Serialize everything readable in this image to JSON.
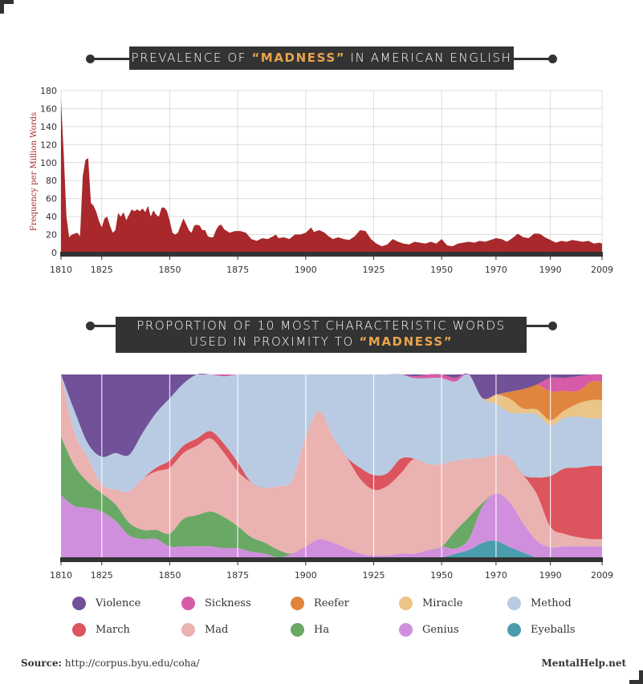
{
  "title1": {
    "prefix": "PREVALENCE OF ",
    "highlight": "“MADNESS”",
    "suffix": " IN AMERICAN ENGLISH"
  },
  "title2": {
    "line1": "PROPORTION OF 10 MOST CHARACTERISTIC WORDS",
    "prefix2": "USED IN PROXIMITY TO ",
    "highlight": "“MADNESS”"
  },
  "footer": {
    "source_label": "Source:",
    "source_url": "http://corpus.byu.edu/coha/",
    "brand": "MentalHelp.net"
  },
  "colors": {
    "frequency_fill": "#a8282b",
    "frame": "#333333",
    "accent": "#e8a44c"
  },
  "chart_data": [
    {
      "type": "area",
      "title": "PREVALENCE OF “MADNESS” IN AMERICAN ENGLISH",
      "ylabel": "Frequency per Million Words",
      "xlim": [
        1810,
        2009
      ],
      "ylim": [
        0,
        180
      ],
      "x_ticks": [
        1810,
        1825,
        1850,
        1875,
        1900,
        1925,
        1950,
        1970,
        1990,
        2009
      ],
      "y_ticks": [
        0,
        20,
        40,
        60,
        80,
        100,
        120,
        140,
        160,
        180
      ],
      "grid": true,
      "points": [
        [
          1810,
          170
        ],
        [
          1811,
          110
        ],
        [
          1812,
          40
        ],
        [
          1813,
          17
        ],
        [
          1814,
          20
        ],
        [
          1816,
          22
        ],
        [
          1817,
          18
        ],
        [
          1818,
          85
        ],
        [
          1819,
          103
        ],
        [
          1820,
          105
        ],
        [
          1821,
          55
        ],
        [
          1822,
          52
        ],
        [
          1823,
          45
        ],
        [
          1824,
          35
        ],
        [
          1825,
          28
        ],
        [
          1826,
          38
        ],
        [
          1827,
          40
        ],
        [
          1828,
          30
        ],
        [
          1829,
          22
        ],
        [
          1830,
          25
        ],
        [
          1831,
          44
        ],
        [
          1832,
          40
        ],
        [
          1833,
          45
        ],
        [
          1834,
          36
        ],
        [
          1835,
          42
        ],
        [
          1836,
          48
        ],
        [
          1837,
          46
        ],
        [
          1838,
          48
        ],
        [
          1839,
          46
        ],
        [
          1840,
          49
        ],
        [
          1841,
          45
        ],
        [
          1842,
          52
        ],
        [
          1843,
          40
        ],
        [
          1844,
          47
        ],
        [
          1845,
          42
        ],
        [
          1846,
          40
        ],
        [
          1847,
          50
        ],
        [
          1848,
          50
        ],
        [
          1849,
          46
        ],
        [
          1850,
          35
        ],
        [
          1851,
          22
        ],
        [
          1852,
          20
        ],
        [
          1853,
          22
        ],
        [
          1854,
          30
        ],
        [
          1855,
          38
        ],
        [
          1856,
          32
        ],
        [
          1857,
          25
        ],
        [
          1858,
          22
        ],
        [
          1859,
          30
        ],
        [
          1860,
          31
        ],
        [
          1861,
          30
        ],
        [
          1862,
          25
        ],
        [
          1863,
          25
        ],
        [
          1864,
          18
        ],
        [
          1865,
          17
        ],
        [
          1866,
          17
        ],
        [
          1867,
          25
        ],
        [
          1868,
          30
        ],
        [
          1869,
          31
        ],
        [
          1870,
          26
        ],
        [
          1872,
          22
        ],
        [
          1874,
          24
        ],
        [
          1876,
          24
        ],
        [
          1878,
          22
        ],
        [
          1880,
          15
        ],
        [
          1882,
          13
        ],
        [
          1884,
          16
        ],
        [
          1886,
          15
        ],
        [
          1888,
          18
        ],
        [
          1889,
          20
        ],
        [
          1890,
          16
        ],
        [
          1892,
          17
        ],
        [
          1894,
          15
        ],
        [
          1896,
          20
        ],
        [
          1898,
          20
        ],
        [
          1900,
          22
        ],
        [
          1902,
          28
        ],
        [
          1903,
          23
        ],
        [
          1905,
          25
        ],
        [
          1907,
          22
        ],
        [
          1908,
          19
        ],
        [
          1910,
          15
        ],
        [
          1912,
          17
        ],
        [
          1914,
          15
        ],
        [
          1916,
          14
        ],
        [
          1918,
          18
        ],
        [
          1920,
          25
        ],
        [
          1922,
          24
        ],
        [
          1924,
          15
        ],
        [
          1926,
          10
        ],
        [
          1928,
          7
        ],
        [
          1930,
          9
        ],
        [
          1932,
          15
        ],
        [
          1934,
          12
        ],
        [
          1936,
          10
        ],
        [
          1938,
          9
        ],
        [
          1940,
          12
        ],
        [
          1942,
          11
        ],
        [
          1944,
          10
        ],
        [
          1946,
          12
        ],
        [
          1948,
          10
        ],
        [
          1950,
          15
        ],
        [
          1952,
          8
        ],
        [
          1954,
          7
        ],
        [
          1956,
          10
        ],
        [
          1958,
          11
        ],
        [
          1960,
          12
        ],
        [
          1962,
          11
        ],
        [
          1964,
          13
        ],
        [
          1966,
          12
        ],
        [
          1968,
          14
        ],
        [
          1970,
          16
        ],
        [
          1972,
          15
        ],
        [
          1974,
          12
        ],
        [
          1976,
          16
        ],
        [
          1978,
          21
        ],
        [
          1980,
          17
        ],
        [
          1982,
          16
        ],
        [
          1984,
          21
        ],
        [
          1986,
          21
        ],
        [
          1988,
          17
        ],
        [
          1990,
          14
        ],
        [
          1992,
          11
        ],
        [
          1994,
          13
        ],
        [
          1996,
          12
        ],
        [
          1998,
          14
        ],
        [
          2000,
          13
        ],
        [
          2002,
          12
        ],
        [
          2004,
          13
        ],
        [
          2006,
          10
        ],
        [
          2008,
          11
        ],
        [
          2009,
          10
        ]
      ]
    },
    {
      "type": "area",
      "stacked": "100%",
      "title": "PROPORTION OF 10 MOST CHARACTERISTIC WORDS USED IN PROXIMITY TO “MADNESS”",
      "xlim": [
        1810,
        2009
      ],
      "x_ticks": [
        1810,
        1825,
        1850,
        1875,
        1900,
        1925,
        1950,
        1970,
        1990,
        2009
      ],
      "legend_position": "bottom",
      "stack_order_bottom_to_top": [
        "Eyeballs",
        "Genius",
        "Ha",
        "Mad",
        "March",
        "Method",
        "Miracle",
        "Reefer",
        "Sickness",
        "Violence"
      ],
      "legend_order": [
        "Violence",
        "Sickness",
        "Reefer",
        "Miracle",
        "Method",
        "March",
        "Mad",
        "Ha",
        "Genius",
        "Eyeballs"
      ],
      "x": [
        1810,
        1815,
        1820,
        1825,
        1830,
        1835,
        1840,
        1845,
        1850,
        1855,
        1860,
        1865,
        1870,
        1875,
        1880,
        1885,
        1890,
        1895,
        1900,
        1905,
        1910,
        1915,
        1920,
        1925,
        1930,
        1935,
        1940,
        1945,
        1950,
        1955,
        1960,
        1965,
        1970,
        1975,
        1980,
        1985,
        1990,
        1995,
        2000,
        2005,
        2009
      ],
      "series": [
        {
          "name": "Eyeballs",
          "color": "#4a9dad",
          "values": [
            0,
            0,
            0,
            0,
            0,
            0,
            0,
            0,
            0,
            0,
            0,
            0,
            0,
            0,
            0,
            0,
            0,
            0,
            0,
            0,
            0,
            0,
            0,
            0,
            0,
            0,
            0,
            0,
            0,
            2,
            4,
            8,
            9,
            6,
            3,
            0,
            0,
            0,
            0,
            0,
            0
          ]
        },
        {
          "name": "Genius",
          "color": "#d08fdd",
          "values": [
            34,
            28,
            27,
            25,
            20,
            12,
            10,
            10,
            6,
            6,
            6,
            6,
            5,
            5,
            3,
            2,
            0,
            2,
            6,
            10,
            8,
            5,
            2,
            1,
            1,
            2,
            2,
            4,
            6,
            3,
            6,
            20,
            26,
            26,
            18,
            10,
            6,
            6,
            6,
            6,
            6
          ]
        },
        {
          "name": "Ha",
          "color": "#6aa865",
          "values": [
            32,
            22,
            14,
            10,
            9,
            7,
            5,
            5,
            7,
            15,
            17,
            19,
            17,
            12,
            8,
            6,
            4,
            0,
            0,
            0,
            0,
            0,
            0,
            0,
            0,
            0,
            0,
            0,
            0,
            10,
            12,
            2,
            0,
            0,
            0,
            0,
            0,
            0,
            0,
            0,
            0
          ]
        },
        {
          "name": "Mad",
          "color": "#eab2b1",
          "values": [
            34,
            18,
            13,
            5,
            8,
            17,
            28,
            32,
            36,
            36,
            38,
            40,
            35,
            30,
            30,
            30,
            35,
            40,
            60,
            70,
            58,
            50,
            41,
            36,
            38,
            44,
            52,
            48,
            46,
            40,
            32,
            25,
            21,
            26,
            30,
            28,
            12,
            7,
            5,
            4,
            4
          ]
        },
        {
          "name": "March",
          "color": "#dc545d",
          "values": [
            0,
            0,
            0,
            0,
            0,
            0,
            0,
            2,
            4,
            4,
            4,
            4,
            5,
            5,
            0,
            0,
            0,
            0,
            0,
            0,
            0,
            0,
            6,
            8,
            7,
            8,
            0,
            0,
            0,
            0,
            0,
            0,
            0,
            0,
            0,
            10,
            30,
            36,
            38,
            40,
            40
          ]
        },
        {
          "name": "Method",
          "color": "#b9cbe2",
          "values": [
            0,
            12,
            8,
            15,
            20,
            20,
            25,
            30,
            34,
            34,
            35,
            31,
            37,
            48,
            59,
            62,
            61,
            58,
            34,
            20,
            34,
            45,
            51,
            55,
            54,
            46,
            44,
            48,
            48,
            45,
            46,
            33,
            28,
            26,
            38,
            38,
            30,
            28,
            28,
            26,
            26
          ]
        },
        {
          "name": "Miracle",
          "color": "#ebc487",
          "values": [
            0,
            0,
            0,
            0,
            0,
            0,
            0,
            0,
            0,
            0,
            0,
            0,
            0,
            0,
            0,
            0,
            0,
            0,
            0,
            0,
            0,
            0,
            0,
            0,
            0,
            0,
            0,
            0,
            0,
            0,
            0,
            0,
            5,
            8,
            3,
            3,
            3,
            4,
            7,
            10,
            10
          ]
        },
        {
          "name": "Reefer",
          "color": "#e0853d",
          "values": [
            0,
            0,
            0,
            0,
            0,
            0,
            0,
            0,
            0,
            0,
            0,
            0,
            0,
            0,
            0,
            0,
            0,
            0,
            0,
            0,
            0,
            0,
            0,
            0,
            0,
            0,
            0,
            0,
            0,
            0,
            0,
            0,
            0,
            4,
            12,
            15,
            17,
            11,
            7,
            10,
            10
          ]
        },
        {
          "name": "Sickness",
          "color": "#d65ba8",
          "values": [
            0,
            0,
            0,
            0,
            0,
            0,
            0,
            0,
            0,
            0,
            0,
            0,
            1,
            0,
            0,
            0,
            0,
            0,
            0,
            0,
            0,
            0,
            0,
            0,
            0,
            0,
            1,
            2,
            2,
            2,
            0,
            0,
            0,
            0,
            0,
            0,
            8,
            7,
            8,
            4,
            4
          ]
        },
        {
          "name": "Violence",
          "color": "#715197",
          "values": [
            0,
            20,
            38,
            45,
            43,
            44,
            32,
            21,
            13,
            5,
            0,
            0,
            0,
            0,
            0,
            0,
            0,
            0,
            0,
            0,
            0,
            0,
            0,
            0,
            0,
            0,
            1,
            0,
            0,
            2,
            0,
            13,
            11,
            10,
            9,
            6,
            2,
            2,
            1,
            0,
            0
          ]
        }
      ]
    }
  ]
}
